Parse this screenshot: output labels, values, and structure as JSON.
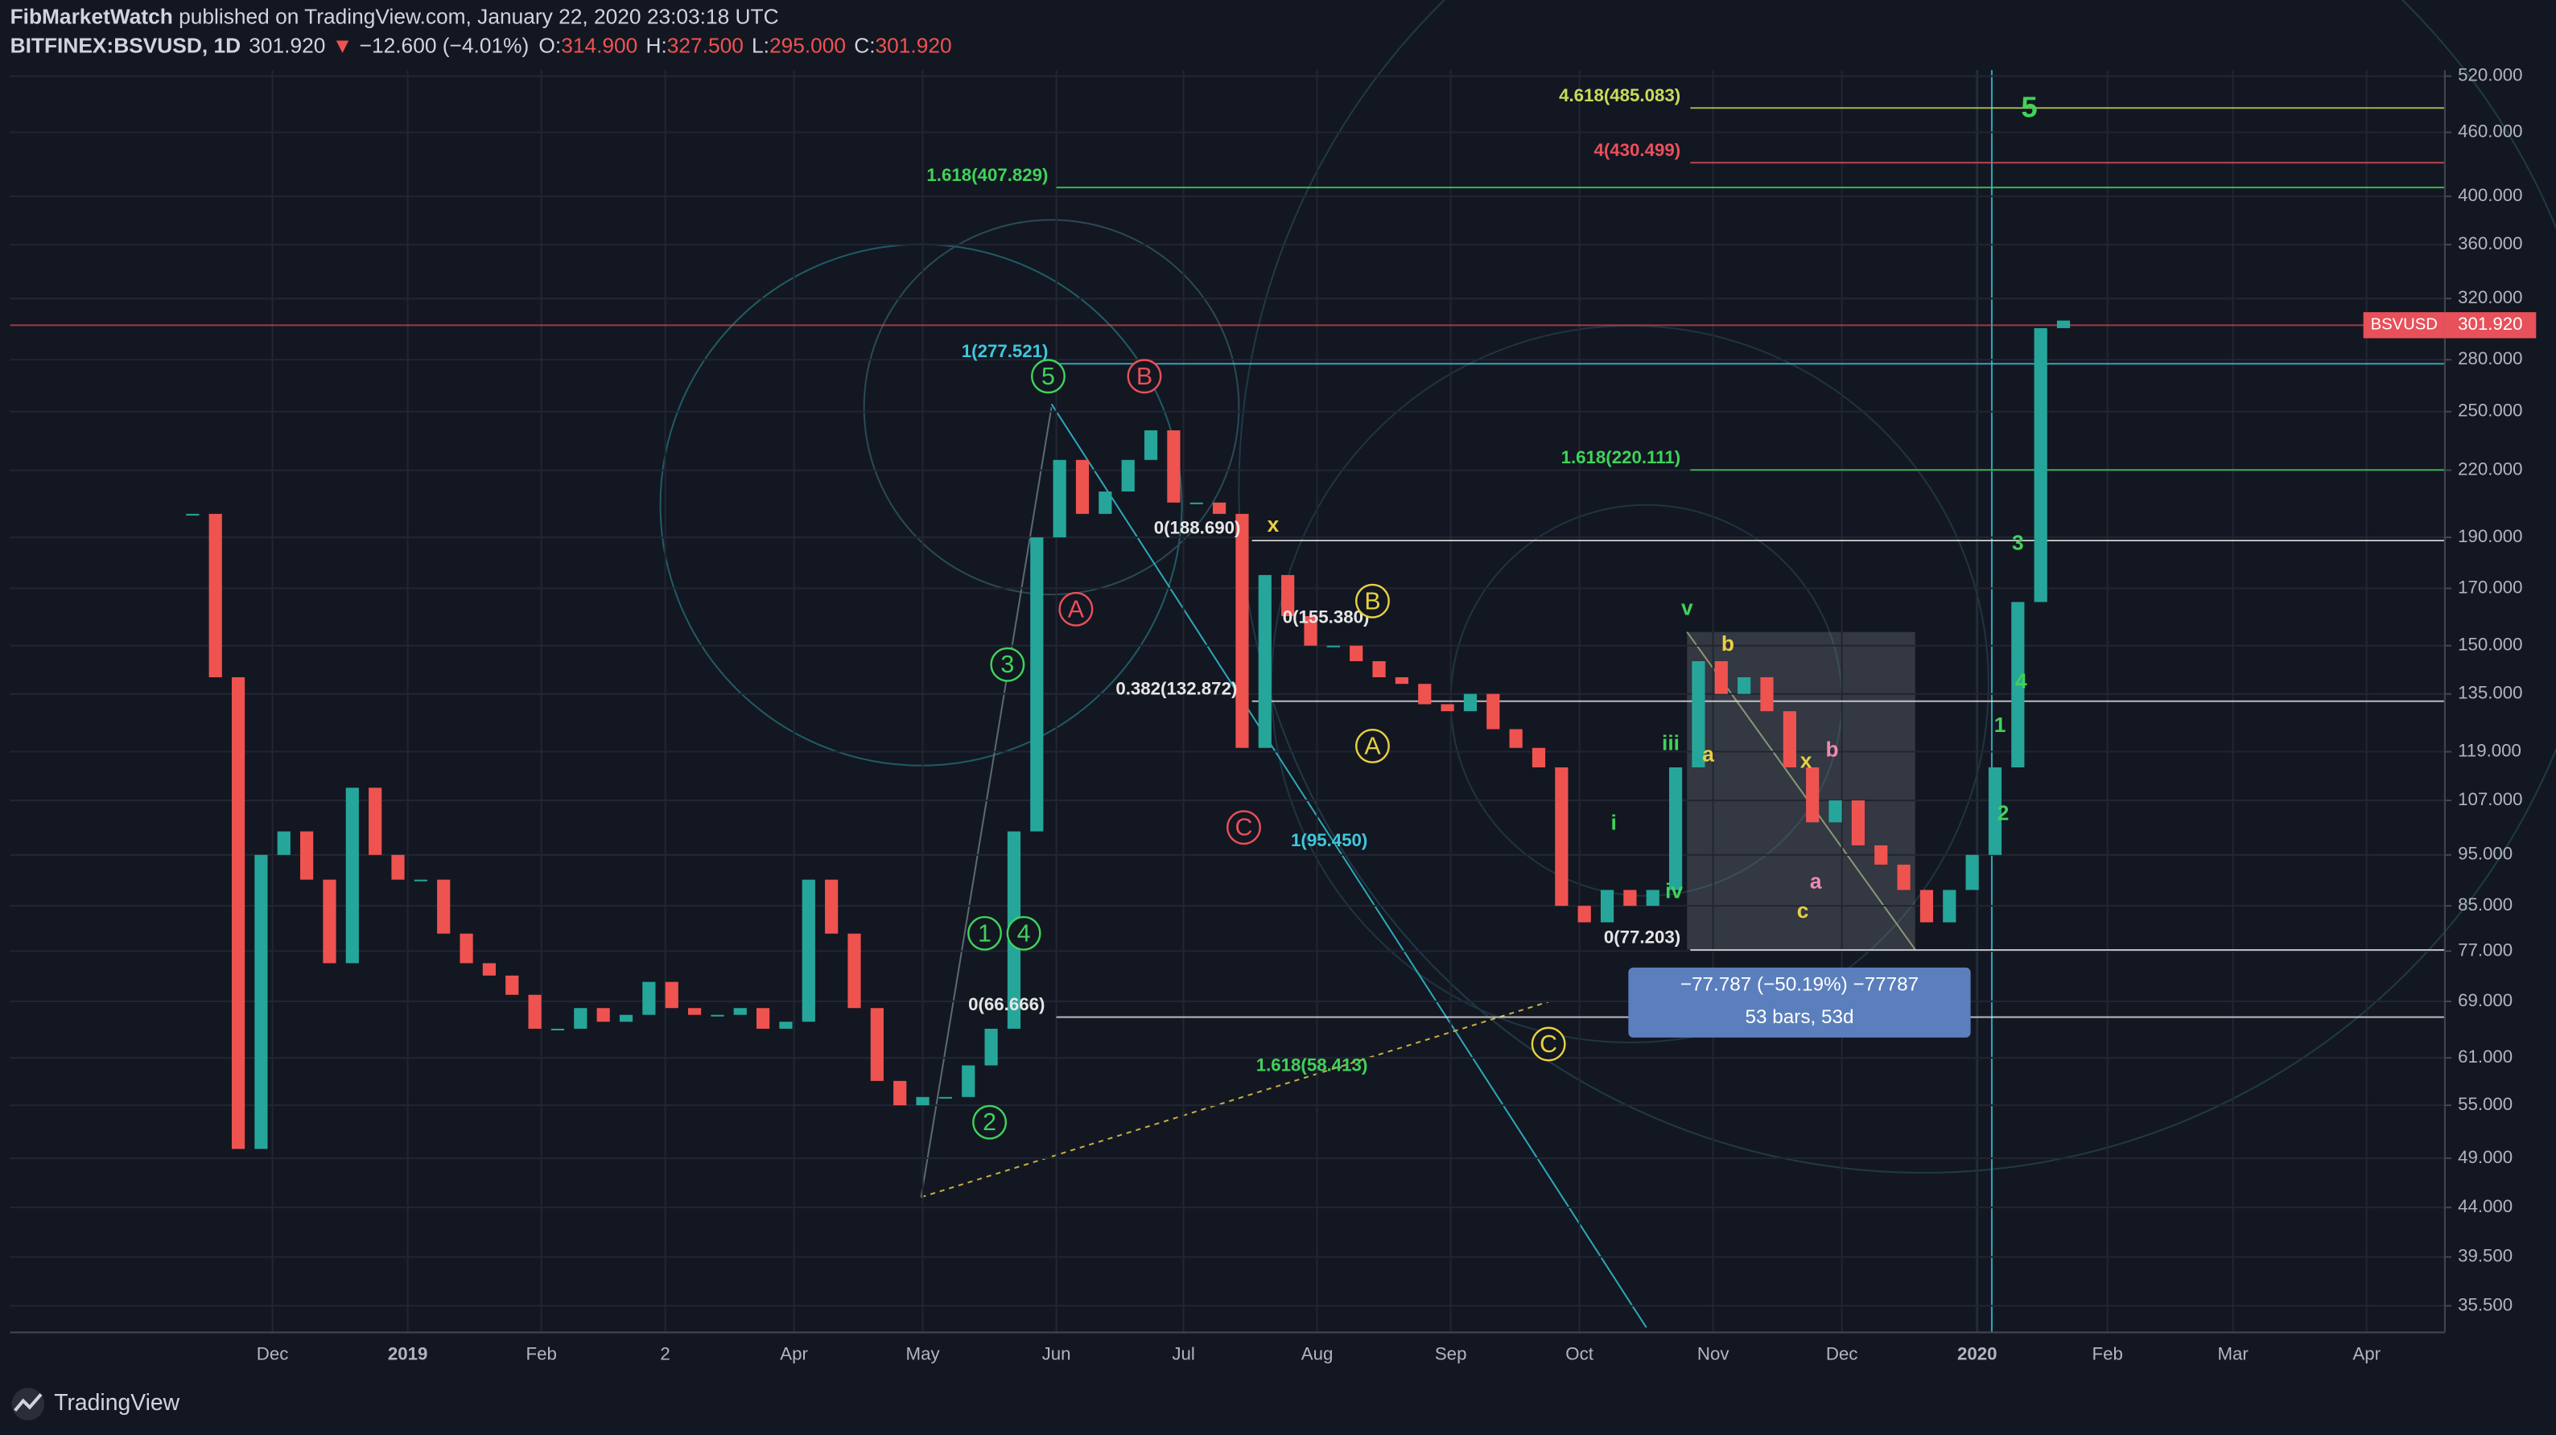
{
  "header": {
    "author": "FibMarketWatch",
    "published": " published on TradingView.com, January 22, 2020 23:03:18 UTC",
    "symbol": "BITFINEX:BSVUSD, 1D",
    "last": "301.920",
    "arrow": "▼",
    "change": "−12.600 (−4.01%)",
    "o_label": "O:",
    "o": "314.900",
    "h_label": "H:",
    "h": "327.500",
    "l_label": "L:",
    "l": "295.000",
    "c_label": "C:",
    "c": "301.920"
  },
  "chart_data": {
    "type": "candlestick",
    "log_scale": true,
    "grid": true,
    "ylim": [
      33.5,
      527
    ],
    "yticks": [
      {
        "value": 520,
        "label": "520.000"
      },
      {
        "value": 460,
        "label": "460.000"
      },
      {
        "value": 400,
        "label": "400.000"
      },
      {
        "value": 360,
        "label": "360.000"
      },
      {
        "value": 320,
        "label": "320.000"
      },
      {
        "value": 280,
        "label": "280.000"
      },
      {
        "value": 250,
        "label": "250.000"
      },
      {
        "value": 220,
        "label": "220.000"
      },
      {
        "value": 190,
        "label": "190.000"
      },
      {
        "value": 170,
        "label": "170.000"
      },
      {
        "value": 150,
        "label": "150.000"
      },
      {
        "value": 135,
        "label": "135.000"
      },
      {
        "value": 119,
        "label": "119.000"
      },
      {
        "value": 107,
        "label": "107.000"
      },
      {
        "value": 95,
        "label": "95.000"
      },
      {
        "value": 85,
        "label": "85.000"
      },
      {
        "value": 77,
        "label": "77.000"
      },
      {
        "value": 69,
        "label": "69.000"
      },
      {
        "value": 61,
        "label": "61.000"
      },
      {
        "value": 55,
        "label": "55.000"
      },
      {
        "value": 49,
        "label": "49.000"
      },
      {
        "value": 44,
        "label": "44.000"
      },
      {
        "value": 39.5,
        "label": "39.500"
      },
      {
        "value": 35.5,
        "label": "35.500"
      }
    ],
    "time_labels": [
      "Dec",
      "2019",
      "Feb",
      "2",
      "Apr",
      "May",
      "Jun",
      "Jul",
      "Aug",
      "Sep",
      "Oct",
      "Nov",
      "Dec",
      "2020",
      "Feb",
      "Mar",
      "Apr"
    ],
    "up_color": "#26a69a",
    "down_color": "#ef5350",
    "closes": [
      200,
      140,
      50,
      95,
      100,
      90,
      75,
      110,
      95,
      90,
      90,
      80,
      75,
      73,
      70,
      65,
      65,
      68,
      66,
      67,
      72,
      68,
      67,
      67,
      68,
      65,
      66,
      90,
      80,
      68,
      58,
      55,
      56,
      56,
      60,
      65,
      100,
      190,
      225,
      200,
      210,
      225,
      240,
      205,
      205,
      200,
      120,
      175,
      160,
      150,
      150,
      145,
      140,
      138,
      132,
      130,
      135,
      125,
      120,
      115,
      85,
      82,
      88,
      85,
      88,
      115,
      145,
      135,
      140,
      130,
      115,
      102,
      107,
      97,
      93,
      88,
      82,
      88,
      95,
      115,
      165,
      300,
      305
    ],
    "fib_levels": [
      {
        "label": "4.618(485.083)",
        "price": 485.083,
        "color": "#c8dc5a"
      },
      {
        "label": "4(430.499)",
        "price": 430.499,
        "color": "#e8505a"
      },
      {
        "label": "1.618(407.829)",
        "price": 407.829,
        "color": "#3fd35a"
      },
      {
        "label": "1(277.521)",
        "price": 277.521,
        "color": "#3fc8dc"
      },
      {
        "label": "1.618(220.111)",
        "price": 220.111,
        "color": "#3fd35a"
      },
      {
        "label": "0(188.690)",
        "price": 188.69,
        "color": "#e6e6e6"
      },
      {
        "label": "0(155.380)",
        "price": 155.38,
        "color": "#e6e6e6"
      },
      {
        "label": "0.382(132.872)",
        "price": 132.872,
        "color": "#e6e6e6"
      },
      {
        "label": "1(95.450)",
        "price": 95.45,
        "color": "#3fc8dc"
      },
      {
        "label": "0(77.203)",
        "price": 77.203,
        "color": "#e6e6e6"
      },
      {
        "label": "0(66.666)",
        "price": 66.666,
        "color": "#e6e6e6"
      },
      {
        "label": "1.618(58.413)",
        "price": 58.413,
        "color": "#3fd35a"
      }
    ],
    "last_price": {
      "symbol": "BSVUSD",
      "price": 301.92,
      "label": "301.920",
      "color": "#e8505a"
    },
    "waves": [
      {
        "text": "5",
        "color": "#3fd35a",
        "circled": true
      },
      {
        "text": "3",
        "color": "#3fd35a",
        "circled": true
      },
      {
        "text": "1",
        "color": "#3fd35a",
        "circled": true
      },
      {
        "text": "4",
        "color": "#3fd35a",
        "circled": true
      },
      {
        "text": "2",
        "color": "#3fd35a",
        "circled": true
      },
      {
        "text": "B",
        "color": "#e8505a",
        "circled": true
      },
      {
        "text": "A",
        "color": "#e8505a",
        "circled": true
      },
      {
        "text": "C",
        "color": "#e8505a",
        "circled": true
      },
      {
        "text": "B",
        "color": "#e8d040",
        "circled": true
      },
      {
        "text": "A",
        "color": "#e8d040",
        "circled": true
      },
      {
        "text": "C",
        "color": "#e8d040",
        "circled": true
      },
      {
        "text": "5",
        "color": "#3fd35a",
        "circled": false
      },
      {
        "text": "3",
        "color": "#3fd35a",
        "circled": false
      },
      {
        "text": "4",
        "color": "#3fd35a",
        "circled": false
      },
      {
        "text": "1",
        "color": "#3fd35a",
        "circled": false
      },
      {
        "text": "2",
        "color": "#3fd35a",
        "circled": false
      },
      {
        "text": "v",
        "color": "#3fd35a",
        "circled": false
      },
      {
        "text": "iii",
        "color": "#3fd35a",
        "circled": false
      },
      {
        "text": "i",
        "color": "#3fd35a",
        "circled": false
      },
      {
        "text": "iv",
        "color": "#3fd35a",
        "circled": false
      },
      {
        "text": "a",
        "color": "#e8d040",
        "circled": false
      },
      {
        "text": "b",
        "color": "#e8d040",
        "circled": false
      },
      {
        "text": "x",
        "color": "#e8d040",
        "circled": false
      },
      {
        "text": "x",
        "color": "#e8d040",
        "circled": false
      },
      {
        "text": "b",
        "color": "#f08ab0",
        "circled": false
      },
      {
        "text": "a",
        "color": "#f08ab0",
        "circled": false
      },
      {
        "text": "c",
        "color": "#e8d040",
        "circled": false
      }
    ],
    "measure": {
      "line1": "−77.787 (−50.19%) −77787",
      "line2": "53 bars, 53d"
    },
    "footer": "TradingView"
  }
}
